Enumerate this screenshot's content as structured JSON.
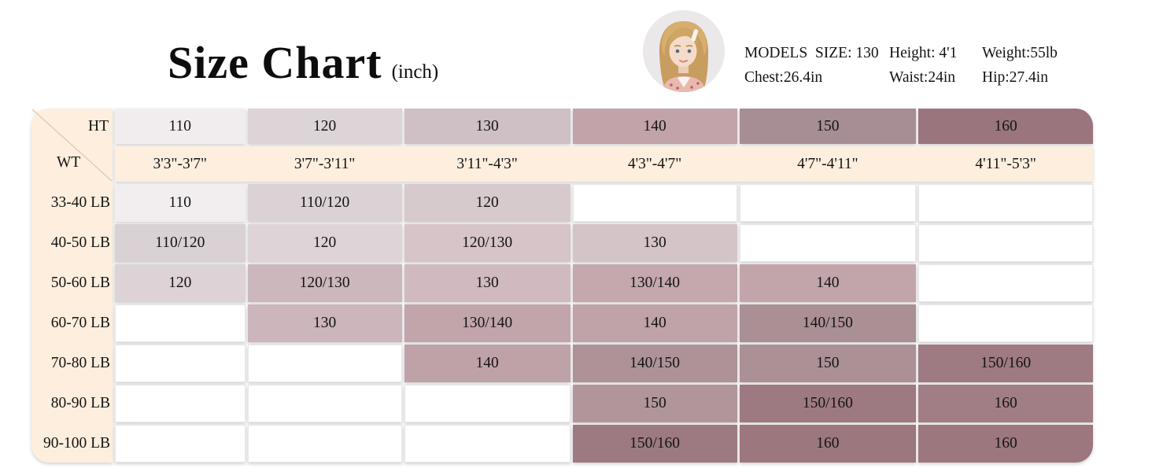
{
  "title": {
    "main": "Size Chart",
    "unit": "(inch)"
  },
  "model": {
    "photo_alt": "girl-model-photo",
    "stats": [
      "MODELS  SIZE: 130",
      "Height: 4'1",
      "Weight:55lb",
      "Chest:26.4in",
      "Waist:24in",
      "Hip:27.4in"
    ]
  },
  "table": {
    "corner": {
      "top": "HT",
      "bottom": "WT"
    },
    "colors": {
      "cream": "#fdeedd",
      "diagonal_line": "#dcc8b5",
      "empty_cell_border": "#e9e5e6",
      "text": "#141414"
    },
    "height_sizes": [
      {
        "label": "110",
        "color": "#f1edef"
      },
      {
        "label": "120",
        "color": "#ddd4d7"
      },
      {
        "label": "130",
        "color": "#cfc0c5"
      },
      {
        "label": "140",
        "color": "#c1a3a9"
      },
      {
        "label": "150",
        "color": "#a68e94"
      },
      {
        "label": "160",
        "color": "#9a757d"
      }
    ],
    "height_ranges": [
      "3'3\"-3'7\"",
      "3'7\"-3'11\"",
      "3'11\"-4'3\"",
      "4'3\"-4'7\"",
      "4'7\"-4'11\"",
      "4'11\"-5'3\""
    ],
    "weight_rows": [
      {
        "label": "33-40 LB",
        "cells": [
          {
            "value": "110",
            "color": "#f2eef0"
          },
          {
            "value": "110/120",
            "color": "#dbd2d5"
          },
          {
            "value": "120",
            "color": "#d7cacd"
          },
          null,
          null,
          null
        ]
      },
      {
        "label": "40-50 LB",
        "cells": [
          {
            "value": "110/120",
            "color": "#dad1d4"
          },
          {
            "value": "120",
            "color": "#ded4d7"
          },
          {
            "value": "120/130",
            "color": "#d6c4c8"
          },
          {
            "value": "130",
            "color": "#d4c4c8"
          },
          null,
          null
        ]
      },
      {
        "label": "50-60 LB",
        "cells": [
          {
            "value": "120",
            "color": "#ddd3d6"
          },
          {
            "value": "120/130",
            "color": "#ccb7bd"
          },
          {
            "value": "130",
            "color": "#d0bac0"
          },
          {
            "value": "130/140",
            "color": "#c4a8ae"
          },
          {
            "value": "140",
            "color": "#c2a5ab"
          },
          null
        ]
      },
      {
        "label": "60-70 LB",
        "cells": [
          null,
          {
            "value": "130",
            "color": "#ccb5bb"
          },
          {
            "value": "130/140",
            "color": "#c2a4ab"
          },
          {
            "value": "140",
            "color": "#c0a3a9"
          },
          {
            "value": "140/150",
            "color": "#aa8f95"
          },
          null
        ]
      },
      {
        "label": "70-80 LB",
        "cells": [
          null,
          null,
          {
            "value": "140",
            "color": "#bfa2a8"
          },
          {
            "value": "140/150",
            "color": "#ae9298"
          },
          {
            "value": "150",
            "color": "#ab9096"
          },
          {
            "value": "150/160",
            "color": "#9e7a82"
          }
        ]
      },
      {
        "label": "80-90 LB",
        "cells": [
          null,
          null,
          null,
          {
            "value": "150",
            "color": "#b0969b"
          },
          {
            "value": "150/160",
            "color": "#9d7a81"
          },
          {
            "value": "160",
            "color": "#a17e85"
          }
        ]
      },
      {
        "label": "90-100 LB",
        "cells": [
          null,
          null,
          null,
          {
            "value": "150/160",
            "color": "#9d7a81"
          },
          {
            "value": "160",
            "color": "#9c777e"
          },
          {
            "value": "160",
            "color": "#9c777e"
          }
        ]
      }
    ]
  },
  "chart_data": {
    "type": "table",
    "title": "Size Chart (inch)",
    "columns_height_size": [
      "110",
      "120",
      "130",
      "140",
      "150",
      "160"
    ],
    "columns_height_range": [
      "3'3\"-3'7\"",
      "3'7\"-3'11\"",
      "3'11\"-4'3\"",
      "4'3\"-4'7\"",
      "4'7\"-4'11\"",
      "4'11\"-5'3\""
    ],
    "rows_weight": [
      "33-40 LB",
      "40-50 LB",
      "50-60 LB",
      "60-70 LB",
      "70-80 LB",
      "80-90 LB",
      "90-100 LB"
    ],
    "matrix": [
      [
        "110",
        "110/120",
        "120",
        "",
        "",
        ""
      ],
      [
        "110/120",
        "120",
        "120/130",
        "130",
        "",
        ""
      ],
      [
        "120",
        "120/130",
        "130",
        "130/140",
        "140",
        ""
      ],
      [
        "",
        "130",
        "130/140",
        "140",
        "140/150",
        ""
      ],
      [
        "",
        "",
        "140",
        "140/150",
        "150",
        "150/160"
      ],
      [
        "",
        "",
        "",
        "150",
        "150/160",
        "160"
      ],
      [
        "",
        "",
        "",
        "150/160",
        "160",
        "160"
      ]
    ],
    "model_info": {
      "models_size": "130",
      "height": "4'1",
      "weight": "55lb",
      "chest": "26.4in",
      "waist": "24in",
      "hip": "27.4in"
    }
  }
}
